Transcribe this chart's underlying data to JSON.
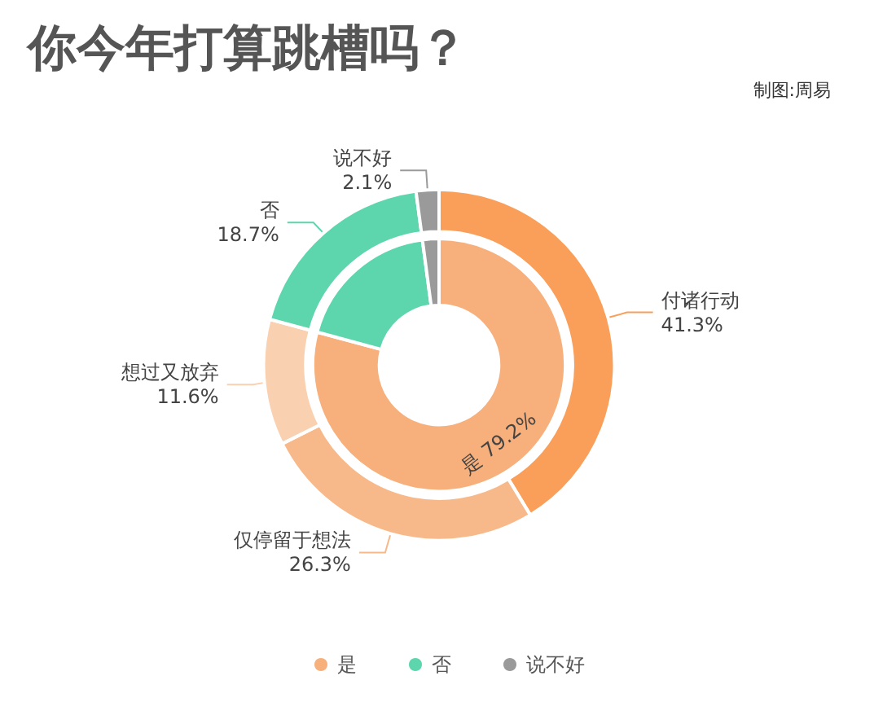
{
  "chart_data": [
    {
      "type": "donut",
      "title": "你今年打算跳槽吗？",
      "annotations": [
        "制图:周易"
      ],
      "legend": "bottom",
      "categories": [
        "是",
        "否",
        "说不好"
      ],
      "values": [
        79.2,
        18.7,
        2.1
      ],
      "colors": [
        "#f7b07c",
        "#5ed6ad",
        "#9a9a9a"
      ],
      "value_labels": [
        "79.2%",
        null,
        null
      ]
    },
    {
      "type": "donut",
      "categories": [
        "付诸行动",
        "仅停留于想法",
        "想过又放弃",
        "否",
        "说不好"
      ],
      "values": [
        41.3,
        26.3,
        11.6,
        18.7,
        2.1
      ],
      "colors": [
        "#fa9f5a",
        "#f7b98a",
        "#f9d0b0",
        "#5ed6ad",
        "#9a9a9a"
      ],
      "value_labels": [
        "41.3%",
        "26.3%",
        "11.6%",
        "18.7%",
        "2.1%"
      ]
    }
  ]
}
